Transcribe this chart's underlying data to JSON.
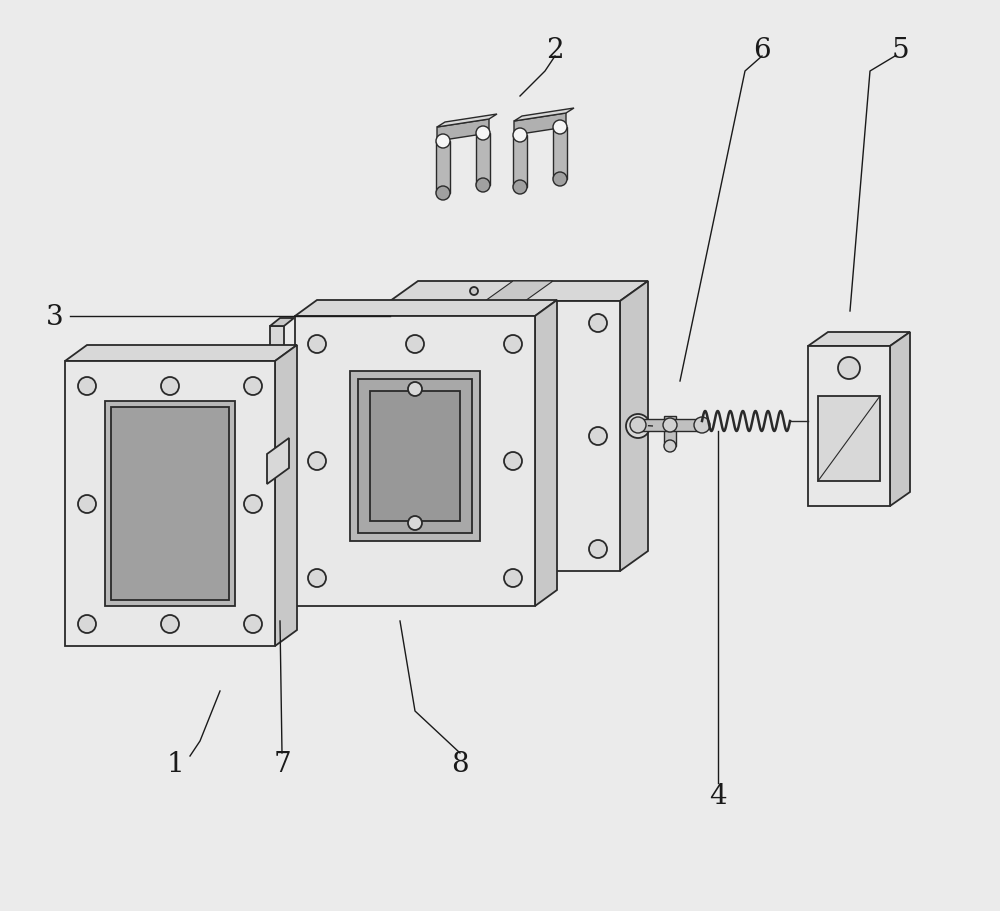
{
  "bg_color": "#ebebeb",
  "line_color": "#2a2a2a",
  "face_light": "#e8e8e8",
  "face_mid": "#d8d8d8",
  "face_dark": "#c8c8c8",
  "face_darker": "#b8b8b8",
  "white": "#f5f5f5"
}
